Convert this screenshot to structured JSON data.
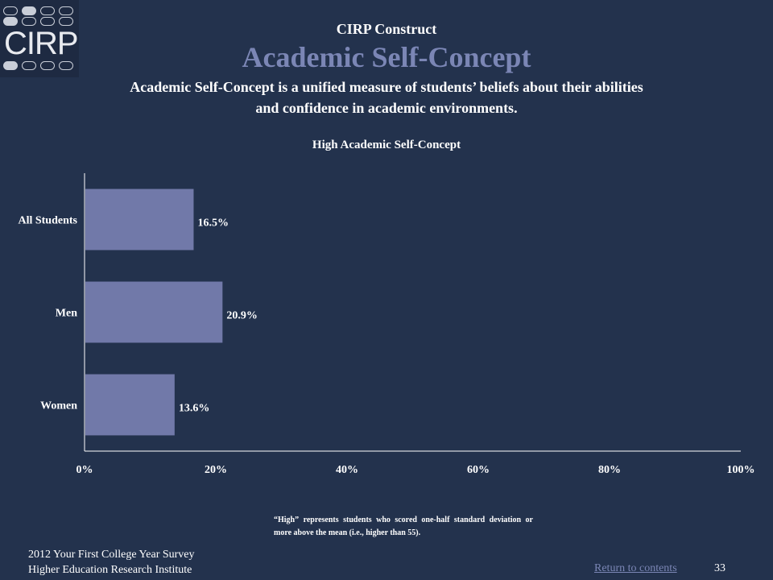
{
  "header": {
    "logo_text": "CIRP",
    "construct_label": "CIRP Construct",
    "title": "Academic Self-Concept",
    "description": "Academic Self-Concept is a unified measure of students’ beliefs about their abilities and confidence in academic environments."
  },
  "chart_data": {
    "type": "bar",
    "orientation": "horizontal",
    "title": "High Academic Self-Concept",
    "categories": [
      "All Students",
      "Men",
      "Women"
    ],
    "values": [
      16.5,
      20.9,
      13.6
    ],
    "value_labels": [
      "16.5%",
      "20.9%",
      "13.6%"
    ],
    "xlim": [
      0,
      100
    ],
    "ticks": [
      0,
      20,
      40,
      60,
      80,
      100
    ],
    "tick_labels": [
      "0%",
      "20%",
      "40%",
      "60%",
      "80%",
      "100%"
    ],
    "xlabel": "",
    "ylabel": "",
    "grid": false,
    "bar_color": "#7179a9"
  },
  "note": "“High” represents students who scored one-half standard deviation or more above the mean (i.e., higher than 55).",
  "footer": {
    "survey": "2012 Your First College Year Survey",
    "institute": "Higher Education Research Institute",
    "return_link": "Return to contents",
    "page_number": "33"
  },
  "colors": {
    "background": "#23324d",
    "accent": "#7b86b5"
  }
}
